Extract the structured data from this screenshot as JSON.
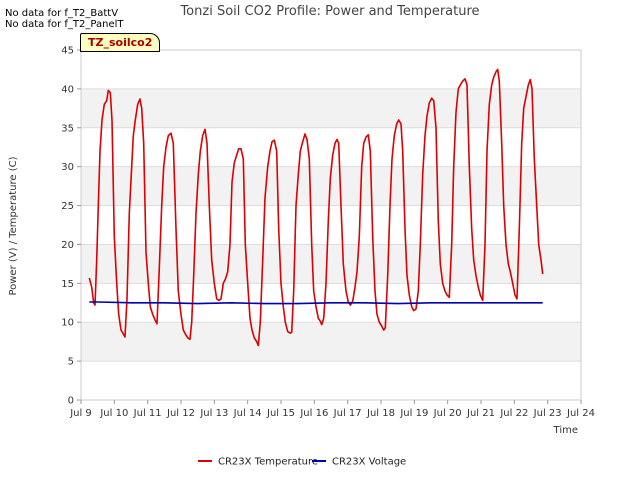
{
  "nodata_messages": [
    "No data for f_T2_BattV",
    "No data for f_T2_PanelT"
  ],
  "site_label": "TZ_soilco2",
  "chart_data": {
    "type": "line",
    "title": "Tonzi Soil CO2 Profile: Power and Temperature",
    "xlabel": "Time",
    "ylabel": "Power (V) / Temperature (C)",
    "xlim": [
      9,
      24
    ],
    "ylim": [
      0,
      45
    ],
    "xticks": [
      9,
      10,
      11,
      12,
      13,
      14,
      15,
      16,
      17,
      18,
      19,
      20,
      21,
      22,
      23,
      24
    ],
    "xtick_labels": [
      "Jul 9",
      "Jul 10",
      "Jul 11",
      "Jul 12",
      "Jul 13",
      "Jul 14",
      "Jul 15",
      "Jul 16",
      "Jul 17",
      "Jul 18",
      "Jul 19",
      "Jul 20",
      "Jul 21",
      "Jul 22",
      "Jul 23",
      "Jul 24"
    ],
    "yticks": [
      0,
      5,
      10,
      15,
      20,
      25,
      30,
      35,
      40,
      45
    ],
    "ytick_labels": [
      "0",
      "5",
      "10",
      "15",
      "20",
      "25",
      "30",
      "35",
      "40",
      "45"
    ],
    "grid": true,
    "legend_position": "bottom",
    "series": [
      {
        "name": "CR23X Temperature",
        "color": "#dd0000",
        "points": [
          [
            9.25,
            15.7
          ],
          [
            9.32,
            14.5
          ],
          [
            9.38,
            12.5
          ],
          [
            9.42,
            12.2
          ],
          [
            9.47,
            18
          ],
          [
            9.52,
            25
          ],
          [
            9.57,
            32
          ],
          [
            9.63,
            36
          ],
          [
            9.7,
            38
          ],
          [
            9.77,
            38.5
          ],
          [
            9.82,
            39.8
          ],
          [
            9.88,
            39.5
          ],
          [
            9.93,
            36
          ],
          [
            10.0,
            21
          ],
          [
            10.07,
            15
          ],
          [
            10.13,
            11
          ],
          [
            10.2,
            9
          ],
          [
            10.27,
            8.5
          ],
          [
            10.32,
            8.1
          ],
          [
            10.38,
            13
          ],
          [
            10.45,
            24
          ],
          [
            10.52,
            30
          ],
          [
            10.57,
            34
          ],
          [
            10.63,
            36
          ],
          [
            10.7,
            38
          ],
          [
            10.77,
            38.7
          ],
          [
            10.82,
            37.5
          ],
          [
            10.88,
            33
          ],
          [
            10.95,
            19
          ],
          [
            11.02,
            15
          ],
          [
            11.08,
            12
          ],
          [
            11.15,
            11
          ],
          [
            11.22,
            10.3
          ],
          [
            11.28,
            9.8
          ],
          [
            11.35,
            17
          ],
          [
            11.42,
            25
          ],
          [
            11.48,
            30
          ],
          [
            11.55,
            32.5
          ],
          [
            11.62,
            34
          ],
          [
            11.7,
            34.3
          ],
          [
            11.77,
            33
          ],
          [
            11.85,
            22
          ],
          [
            11.92,
            14
          ],
          [
            12.0,
            11
          ],
          [
            12.07,
            9
          ],
          [
            12.13,
            8.5
          ],
          [
            12.2,
            8.0
          ],
          [
            12.27,
            7.8
          ],
          [
            12.32,
            10
          ],
          [
            12.38,
            16
          ],
          [
            12.45,
            24
          ],
          [
            12.52,
            29
          ],
          [
            12.58,
            32
          ],
          [
            12.65,
            34
          ],
          [
            12.72,
            34.8
          ],
          [
            12.78,
            33
          ],
          [
            12.85,
            25
          ],
          [
            12.92,
            18
          ],
          [
            13.0,
            15
          ],
          [
            13.07,
            13
          ],
          [
            13.13,
            12.8
          ],
          [
            13.2,
            13
          ],
          [
            13.27,
            15
          ],
          [
            13.33,
            15.5
          ],
          [
            13.4,
            16.5
          ],
          [
            13.47,
            20
          ],
          [
            13.53,
            28
          ],
          [
            13.6,
            30.5
          ],
          [
            13.67,
            31.5
          ],
          [
            13.73,
            32.3
          ],
          [
            13.8,
            32.3
          ],
          [
            13.87,
            31
          ],
          [
            13.93,
            20
          ],
          [
            14.0,
            15
          ],
          [
            14.07,
            10.5
          ],
          [
            14.13,
            9
          ],
          [
            14.2,
            8
          ],
          [
            14.27,
            7.5
          ],
          [
            14.32,
            7.0
          ],
          [
            14.38,
            10
          ],
          [
            14.45,
            18
          ],
          [
            14.52,
            26
          ],
          [
            14.6,
            30
          ],
          [
            14.67,
            32
          ],
          [
            14.73,
            33.2
          ],
          [
            14.8,
            33.4
          ],
          [
            14.87,
            32
          ],
          [
            14.93,
            22
          ],
          [
            15.0,
            15
          ],
          [
            15.07,
            12
          ],
          [
            15.13,
            10
          ],
          [
            15.2,
            8.8
          ],
          [
            15.27,
            8.6
          ],
          [
            15.32,
            8.7
          ],
          [
            15.38,
            14
          ],
          [
            15.45,
            25
          ],
          [
            15.52,
            29
          ],
          [
            15.58,
            32
          ],
          [
            15.65,
            33.2
          ],
          [
            15.72,
            34.2
          ],
          [
            15.78,
            33.5
          ],
          [
            15.85,
            31
          ],
          [
            15.92,
            20
          ],
          [
            15.98,
            14
          ],
          [
            16.05,
            12
          ],
          [
            16.12,
            10.5
          ],
          [
            16.17,
            10.2
          ],
          [
            16.22,
            9.7
          ],
          [
            16.28,
            10.5
          ],
          [
            16.35,
            15
          ],
          [
            16.42,
            23
          ],
          [
            16.48,
            28.5
          ],
          [
            16.55,
            31.5
          ],
          [
            16.62,
            33
          ],
          [
            16.68,
            33.5
          ],
          [
            16.73,
            33
          ],
          [
            16.8,
            25
          ],
          [
            16.87,
            17.5
          ],
          [
            16.95,
            14
          ],
          [
            17.02,
            12.6
          ],
          [
            17.08,
            12.2
          ],
          [
            17.15,
            12.7
          ],
          [
            17.22,
            14.5
          ],
          [
            17.28,
            16.5
          ],
          [
            17.35,
            21
          ],
          [
            17.42,
            30
          ],
          [
            17.48,
            33
          ],
          [
            17.55,
            33.8
          ],
          [
            17.62,
            34.1
          ],
          [
            17.68,
            32
          ],
          [
            17.75,
            21
          ],
          [
            17.82,
            14
          ],
          [
            17.88,
            11
          ],
          [
            17.95,
            10
          ],
          [
            18.02,
            9.5
          ],
          [
            18.08,
            9.0
          ],
          [
            18.13,
            9.3
          ],
          [
            18.2,
            16
          ],
          [
            18.27,
            25
          ],
          [
            18.33,
            31
          ],
          [
            18.4,
            34
          ],
          [
            18.47,
            35.5
          ],
          [
            18.53,
            36.0
          ],
          [
            18.6,
            35.5
          ],
          [
            18.65,
            32
          ],
          [
            18.72,
            22
          ],
          [
            18.78,
            16
          ],
          [
            18.85,
            13.5
          ],
          [
            18.92,
            12
          ],
          [
            18.98,
            11.5
          ],
          [
            19.05,
            11.7
          ],
          [
            19.12,
            14
          ],
          [
            19.18,
            20
          ],
          [
            19.25,
            29
          ],
          [
            19.32,
            34
          ],
          [
            19.38,
            36.5
          ],
          [
            19.45,
            38.2
          ],
          [
            19.52,
            38.8
          ],
          [
            19.58,
            38.5
          ],
          [
            19.65,
            35
          ],
          [
            19.72,
            23
          ],
          [
            19.78,
            17.5
          ],
          [
            19.85,
            15
          ],
          [
            19.92,
            14
          ],
          [
            19.98,
            13.5
          ],
          [
            20.05,
            13.2
          ],
          [
            20.12,
            20
          ],
          [
            20.18,
            30
          ],
          [
            20.25,
            37
          ],
          [
            20.32,
            40
          ],
          [
            20.38,
            40.5
          ],
          [
            20.45,
            41
          ],
          [
            20.52,
            41.3
          ],
          [
            20.58,
            40.5
          ],
          [
            20.65,
            30
          ],
          [
            20.72,
            22
          ],
          [
            20.78,
            18
          ],
          [
            20.85,
            16
          ],
          [
            20.92,
            14.5
          ],
          [
            20.98,
            13.5
          ],
          [
            21.05,
            12.8
          ],
          [
            21.12,
            20
          ],
          [
            21.18,
            32
          ],
          [
            21.25,
            38
          ],
          [
            21.32,
            40.5
          ],
          [
            21.38,
            41.5
          ],
          [
            21.45,
            42.2
          ],
          [
            21.5,
            42.5
          ],
          [
            21.55,
            41
          ],
          [
            21.62,
            33
          ],
          [
            21.68,
            25
          ],
          [
            21.75,
            20
          ],
          [
            21.82,
            17.5
          ],
          [
            21.88,
            16.5
          ],
          [
            21.95,
            15
          ],
          [
            22.02,
            13.5
          ],
          [
            22.08,
            13
          ],
          [
            22.15,
            22
          ],
          [
            22.22,
            33
          ],
          [
            22.28,
            37.5
          ],
          [
            22.35,
            39
          ],
          [
            22.42,
            40.5
          ],
          [
            22.48,
            41.2
          ],
          [
            22.53,
            40
          ],
          [
            22.6,
            31
          ],
          [
            22.67,
            25
          ],
          [
            22.73,
            20
          ],
          [
            22.8,
            18
          ],
          [
            22.85,
            16.2
          ]
        ]
      },
      {
        "name": "CR23X Voltage",
        "color": "#0000aa",
        "points": [
          [
            9.25,
            12.6
          ],
          [
            9.5,
            12.6
          ],
          [
            10.5,
            12.5
          ],
          [
            11.5,
            12.5
          ],
          [
            12.5,
            12.4
          ],
          [
            13.5,
            12.5
          ],
          [
            14.5,
            12.4
          ],
          [
            15.5,
            12.4
          ],
          [
            16.5,
            12.5
          ],
          [
            17.5,
            12.5
          ],
          [
            18.5,
            12.4
          ],
          [
            19.5,
            12.5
          ],
          [
            20.5,
            12.5
          ],
          [
            21.5,
            12.5
          ],
          [
            22.5,
            12.5
          ],
          [
            22.85,
            12.5
          ]
        ]
      }
    ]
  }
}
